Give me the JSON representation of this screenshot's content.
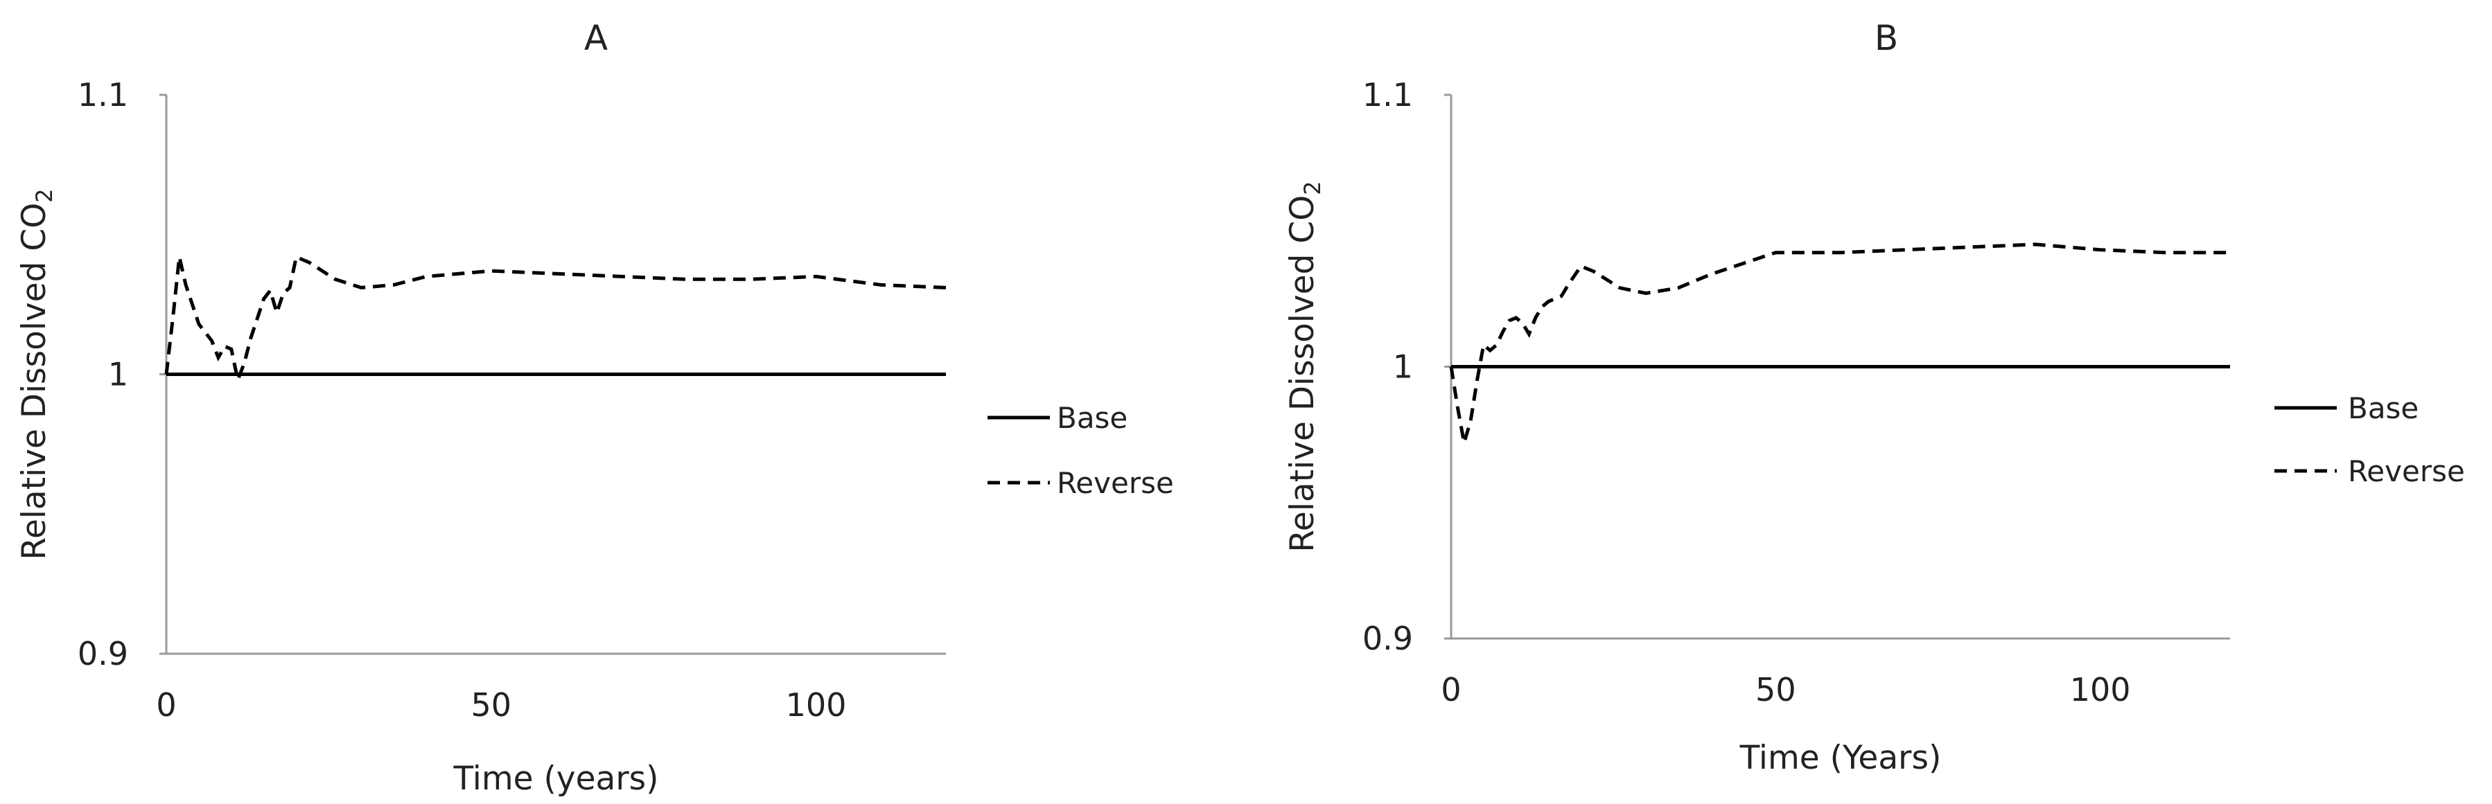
{
  "chart_data": [
    {
      "type": "line",
      "title": "A",
      "xlabel": "Time (years)",
      "ylabel": "Relative Dissolved CO",
      "ylabel_subscript": "2",
      "xlim": [
        0,
        120
      ],
      "ylim": [
        0.9,
        1.1
      ],
      "x_ticks": [
        "0",
        "50",
        "100"
      ],
      "y_ticks": [
        "0.9",
        "1",
        "1.1"
      ],
      "grid": false,
      "legend": "right",
      "series": [
        {
          "name": "Base",
          "style": "solid",
          "color": "#000000",
          "points": [
            [
              0,
              1.0
            ],
            [
              120,
              1.0
            ]
          ]
        },
        {
          "name": "Reverse",
          "style": "dashed",
          "color": "#000000",
          "points": [
            [
              0,
              1.0
            ],
            [
              1,
              1.02
            ],
            [
              2,
              1.042
            ],
            [
              3,
              1.032
            ],
            [
              4,
              1.025
            ],
            [
              5,
              1.018
            ],
            [
              7,
              1.012
            ],
            [
              8,
              1.006
            ],
            [
              9,
              1.01
            ],
            [
              10,
              1.009
            ],
            [
              11,
              0.998
            ],
            [
              12,
              1.004
            ],
            [
              13,
              1.013
            ],
            [
              14,
              1.02
            ],
            [
              15,
              1.027
            ],
            [
              16,
              1.03
            ],
            [
              17,
              1.022
            ],
            [
              18,
              1.029
            ],
            [
              19,
              1.031
            ],
            [
              20,
              1.042
            ],
            [
              22,
              1.04
            ],
            [
              26,
              1.034
            ],
            [
              30,
              1.031
            ],
            [
              35,
              1.032
            ],
            [
              40,
              1.035
            ],
            [
              50,
              1.037
            ],
            [
              60,
              1.036
            ],
            [
              70,
              1.035
            ],
            [
              80,
              1.034
            ],
            [
              90,
              1.034
            ],
            [
              100,
              1.035
            ],
            [
              110,
              1.032
            ],
            [
              120,
              1.031
            ]
          ]
        }
      ]
    },
    {
      "type": "line",
      "title": "B",
      "xlabel": "Time (Years)",
      "ylabel": "Relative Dissolved CO",
      "ylabel_subscript": "2",
      "xlim": [
        0,
        120
      ],
      "ylim": [
        0.9,
        1.1
      ],
      "x_ticks": [
        "0",
        "50",
        "100"
      ],
      "y_ticks": [
        "0.9",
        "1",
        "1.1"
      ],
      "grid": false,
      "legend": "right",
      "series": [
        {
          "name": "Base",
          "style": "solid",
          "color": "#000000",
          "points": [
            [
              0,
              1.0
            ],
            [
              120,
              1.0
            ]
          ]
        },
        {
          "name": "Reverse",
          "style": "dashed",
          "color": "#000000",
          "points": [
            [
              0,
              1.0
            ],
            [
              1,
              0.985
            ],
            [
              2,
              0.972
            ],
            [
              3,
              0.98
            ],
            [
              4,
              0.995
            ],
            [
              5,
              1.008
            ],
            [
              6,
              1.006
            ],
            [
              7,
              1.008
            ],
            [
              8,
              1.013
            ],
            [
              9,
              1.017
            ],
            [
              10,
              1.018
            ],
            [
              11,
              1.016
            ],
            [
              12,
              1.012
            ],
            [
              13,
              1.018
            ],
            [
              14,
              1.022
            ],
            [
              15,
              1.024
            ],
            [
              17,
              1.026
            ],
            [
              18,
              1.03
            ],
            [
              20,
              1.037
            ],
            [
              22,
              1.035
            ],
            [
              26,
              1.029
            ],
            [
              30,
              1.027
            ],
            [
              35,
              1.029
            ],
            [
              40,
              1.034
            ],
            [
              45,
              1.038
            ],
            [
              50,
              1.042
            ],
            [
              60,
              1.042
            ],
            [
              70,
              1.043
            ],
            [
              80,
              1.044
            ],
            [
              90,
              1.045
            ],
            [
              100,
              1.043
            ],
            [
              110,
              1.042
            ],
            [
              120,
              1.042
            ]
          ]
        }
      ]
    }
  ]
}
